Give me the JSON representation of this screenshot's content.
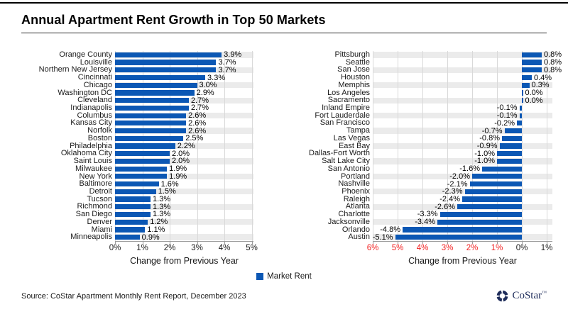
{
  "title": "Annual Apartment Rent Growth in Top 50 Markets",
  "legend": {
    "label": "Market Rent"
  },
  "colors": {
    "bar": "#0b57b4",
    "negative_tick": "#f22222",
    "band": "#ebebeb",
    "logo_navy": "#1e2c5a"
  },
  "footer": {
    "source": "Source: CoStar Apartment Monthly Rent Report, December 2023",
    "brand": "CoStar",
    "trademark": "™"
  },
  "chart_data": [
    {
      "type": "bar",
      "orientation": "horizontal",
      "xlabel": "Change from Previous Year",
      "categories": [
        "Orange County",
        "Louisville",
        "Northern New Jersey",
        "Cincinnati",
        "Chicago",
        "Washington DC",
        "Cleveland",
        "Indianapolis",
        "Columbus",
        "Kansas City",
        "Norfolk",
        "Boston",
        "Philadelphia",
        "Oklahoma City",
        "Saint Louis",
        "Milwaukee",
        "New York",
        "Baltimore",
        "Detroit",
        "Tucson",
        "Richmond",
        "San Diego",
        "Denver",
        "Miami",
        "Minneapolis"
      ],
      "values": [
        3.9,
        3.7,
        3.7,
        3.3,
        3.0,
        2.9,
        2.7,
        2.7,
        2.6,
        2.6,
        2.6,
        2.5,
        2.2,
        2.0,
        2.0,
        1.9,
        1.9,
        1.6,
        1.5,
        1.3,
        1.3,
        1.3,
        1.2,
        1.1,
        0.9
      ],
      "xlim": [
        0,
        5
      ],
      "xticks": [
        {
          "value": 0,
          "label": "0%",
          "red": false
        },
        {
          "value": 1,
          "label": "1%",
          "red": false
        },
        {
          "value": 2,
          "label": "2%",
          "red": false
        },
        {
          "value": 3,
          "label": "3%",
          "red": false
        },
        {
          "value": 4,
          "label": "4%",
          "red": false
        },
        {
          "value": 5,
          "label": "5%",
          "red": false
        }
      ],
      "grid": true,
      "series_name": "Market Rent"
    },
    {
      "type": "bar",
      "orientation": "horizontal",
      "xlabel": "Change from Previous Year",
      "categories": [
        "Pittsburgh",
        "Seattle",
        "San Jose",
        "Houston",
        "Memphis",
        "Los Angeles",
        "Sacramento",
        "Inland Empire",
        "Fort Lauderdale",
        "San Francisco",
        "Tampa",
        "Las Vegas",
        "East Bay",
        "Dallas-Fort Worth",
        "Salt Lake City",
        "San Antonio",
        "Portland",
        "Nashville",
        "Phoenix",
        "Raleigh",
        "Atlanta",
        "Charlotte",
        "Jacksonville",
        "Orlando",
        "Austin"
      ],
      "values": [
        0.8,
        0.8,
        0.8,
        0.4,
        0.3,
        0.0,
        0.0,
        -0.1,
        -0.1,
        -0.2,
        -0.7,
        -0.8,
        -0.9,
        -1.0,
        -1.0,
        -1.6,
        -2.0,
        -2.1,
        -2.3,
        -2.4,
        -2.6,
        -3.3,
        -3.4,
        -4.8,
        -5.1
      ],
      "xlim": [
        -6,
        1
      ],
      "xticks": [
        {
          "value": -6,
          "label": "6%",
          "red": true
        },
        {
          "value": -5,
          "label": "5%",
          "red": true
        },
        {
          "value": -4,
          "label": "4%",
          "red": true
        },
        {
          "value": -3,
          "label": "3%",
          "red": true
        },
        {
          "value": -2,
          "label": "2%",
          "red": true
        },
        {
          "value": -1,
          "label": "1%",
          "red": true
        },
        {
          "value": 0,
          "label": "0%",
          "red": false
        },
        {
          "value": 1,
          "label": "1%",
          "red": false
        }
      ],
      "grid": true,
      "series_name": "Market Rent"
    }
  ]
}
